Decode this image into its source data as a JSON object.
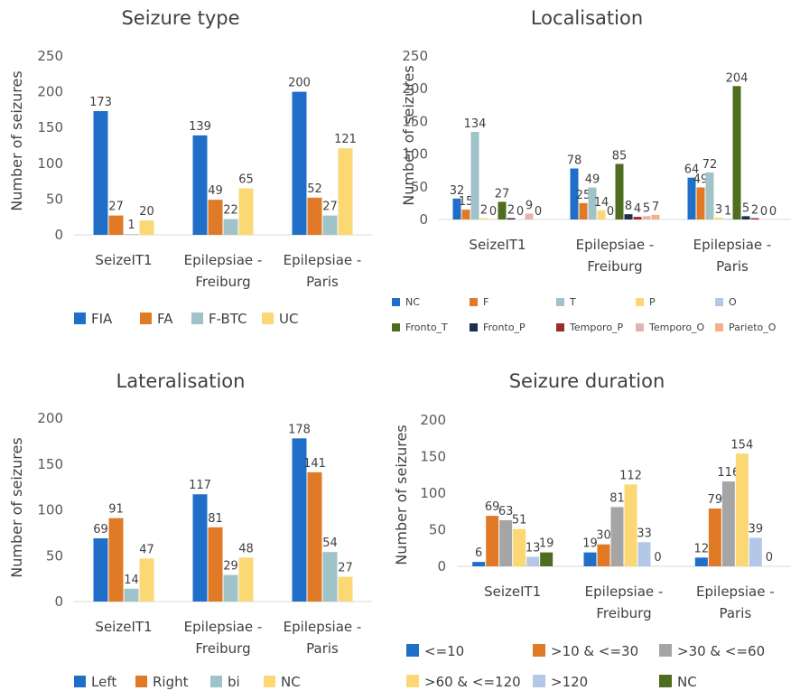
{
  "chart_data": [
    {
      "id": "seizure-type",
      "type": "bar",
      "title": "Seizure type",
      "ylabel": "Number of seizures",
      "ylim": [
        0,
        250
      ],
      "yticks": [
        0,
        50,
        100,
        150,
        200,
        250
      ],
      "categories": [
        [
          "SeizeIT1"
        ],
        [
          "Epilepsiae -",
          "Freiburg"
        ],
        [
          "Epilepsiae -",
          "Paris"
        ]
      ],
      "series": [
        {
          "name": "FIA",
          "color": "#1f6fc8",
          "values": [
            173,
            139,
            200
          ]
        },
        {
          "name": "FA",
          "color": "#e07a26",
          "values": [
            27,
            49,
            52
          ]
        },
        {
          "name": "F-BTC",
          "color": "#9fc3c8",
          "values": [
            1,
            22,
            27
          ]
        },
        {
          "name": "UC",
          "color": "#fbd874",
          "values": [
            20,
            65,
            121
          ]
        }
      ],
      "legend": "bottom"
    },
    {
      "id": "localisation",
      "type": "bar",
      "title": "Localisation",
      "ylabel": "Number of seizures",
      "ylim": [
        0,
        250
      ],
      "yticks": [
        0,
        50,
        100,
        150,
        200,
        250
      ],
      "categories": [
        [
          "SeizeIT1"
        ],
        [
          "Epilepsiae -",
          "Freiburg"
        ],
        [
          "Epilepsiae -",
          "Paris"
        ]
      ],
      "series": [
        {
          "name": "NC",
          "color": "#1f6fc8",
          "values": [
            32,
            78,
            64
          ]
        },
        {
          "name": "F",
          "color": "#e07a26",
          "values": [
            15,
            25,
            49
          ]
        },
        {
          "name": "T",
          "color": "#9fc3c8",
          "values": [
            134,
            49,
            72
          ]
        },
        {
          "name": "P",
          "color": "#fbd874",
          "values": [
            2,
            14,
            3
          ]
        },
        {
          "name": "O",
          "color": "#b4c7e7",
          "values": [
            0,
            0,
            1
          ]
        },
        {
          "name": "Fronto_T",
          "color": "#4e6d1f",
          "values": [
            27,
            85,
            204
          ]
        },
        {
          "name": "Fronto_P",
          "color": "#1f2d4e",
          "values": [
            2,
            8,
            5
          ]
        },
        {
          "name": "Temporo_P",
          "color": "#9b2c2c",
          "values": [
            0,
            4,
            2
          ]
        },
        {
          "name": "Temporo_O",
          "color": "#e8b1b1",
          "values": [
            9,
            5,
            0
          ]
        },
        {
          "name": "Parieto_O",
          "color": "#f4b183",
          "values": [
            0,
            7,
            0
          ]
        }
      ],
      "legend": "bottom"
    },
    {
      "id": "lateralisation",
      "type": "bar",
      "title": "Lateralisation",
      "ylabel": "Number of seizures",
      "ylim": [
        0,
        200
      ],
      "yticks": [
        0,
        50,
        100,
        150,
        200
      ],
      "categories": [
        [
          "SeizeIT1"
        ],
        [
          "Epilepsiae -",
          "Freiburg"
        ],
        [
          "Epilepsiae -",
          "Paris"
        ]
      ],
      "series": [
        {
          "name": "Left",
          "color": "#1f6fc8",
          "values": [
            69,
            117,
            178
          ]
        },
        {
          "name": "Right",
          "color": "#e07a26",
          "values": [
            91,
            81,
            141
          ]
        },
        {
          "name": "bi",
          "color": "#9fc3c8",
          "values": [
            14,
            29,
            54
          ]
        },
        {
          "name": "NC",
          "color": "#fbd874",
          "values": [
            47,
            48,
            27
          ]
        }
      ],
      "legend": "bottom"
    },
    {
      "id": "seizure-duration",
      "type": "bar",
      "title": "Seizure duration",
      "ylabel": "Number of seizures",
      "ylim": [
        0,
        200
      ],
      "yticks": [
        0,
        50,
        100,
        150,
        200
      ],
      "categories": [
        [
          "SeizeIT1"
        ],
        [
          "Epilepsiae -",
          "Freiburg"
        ],
        [
          "Epilepsiae -",
          "Paris"
        ]
      ],
      "series": [
        {
          "name": "<=10",
          "color": "#1f6fc8",
          "values": [
            6,
            19,
            12
          ]
        },
        {
          "name": ">10 & <=30",
          "color": "#e07a26",
          "values": [
            69,
            30,
            79
          ]
        },
        {
          "name": ">30 & <=60",
          "color": "#a5a5a5",
          "values": [
            63,
            81,
            116
          ]
        },
        {
          "name": ">60 & <=120",
          "color": "#fbd874",
          "values": [
            51,
            112,
            154
          ]
        },
        {
          "name": ">120",
          "color": "#b4c7e7",
          "values": [
            13,
            33,
            39
          ]
        },
        {
          "name": "NC",
          "color": "#4e6d1f",
          "values": [
            19,
            0,
            0
          ]
        }
      ],
      "legend": "bottom"
    }
  ]
}
